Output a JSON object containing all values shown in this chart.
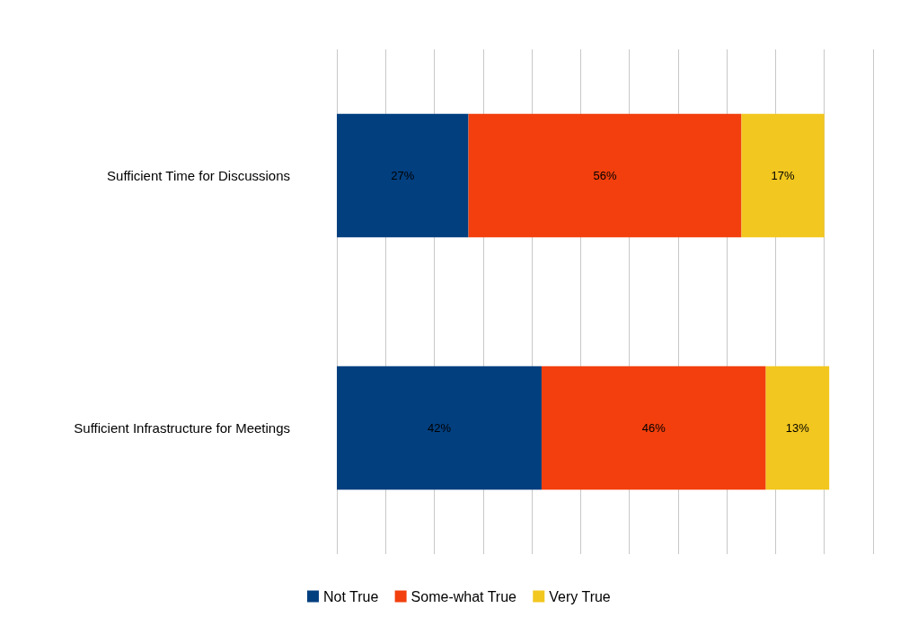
{
  "chart_data": {
    "type": "bar",
    "orientation": "horizontal",
    "stacked": true,
    "categories": [
      "Sufficient Time for Discussions",
      "Sufficient Infrastructure for Meetings"
    ],
    "series": [
      {
        "name": "Not True",
        "color": "#023f7f",
        "values": [
          27,
          42
        ],
        "value_labels": [
          "27%",
          "42%"
        ]
      },
      {
        "name": "Some-what True",
        "color": "#f23f0d",
        "values": [
          56,
          46
        ],
        "value_labels": [
          "56%",
          "46%"
        ]
      },
      {
        "name": "Very True",
        "color": "#f2c71f",
        "values": [
          17,
          13
        ],
        "value_labels": [
          "17%",
          "13%"
        ]
      }
    ],
    "xlim": [
      0,
      110
    ],
    "xticks": [
      {
        "value": 0,
        "label": null
      },
      {
        "value": 10,
        "label": null
      },
      {
        "value": 20,
        "label": null
      },
      {
        "value": 30,
        "label": null
      },
      {
        "value": 40,
        "label": null
      },
      {
        "value": 50,
        "label": null
      },
      {
        "value": 60,
        "label": null
      },
      {
        "value": 70,
        "label": null
      },
      {
        "value": 80,
        "label": null
      },
      {
        "value": 90,
        "label": null
      },
      {
        "value": 100,
        "label": null
      },
      {
        "value": 110,
        "label": null
      }
    ],
    "grid": "x",
    "tick_labels": "y",
    "legend": "bottom"
  }
}
